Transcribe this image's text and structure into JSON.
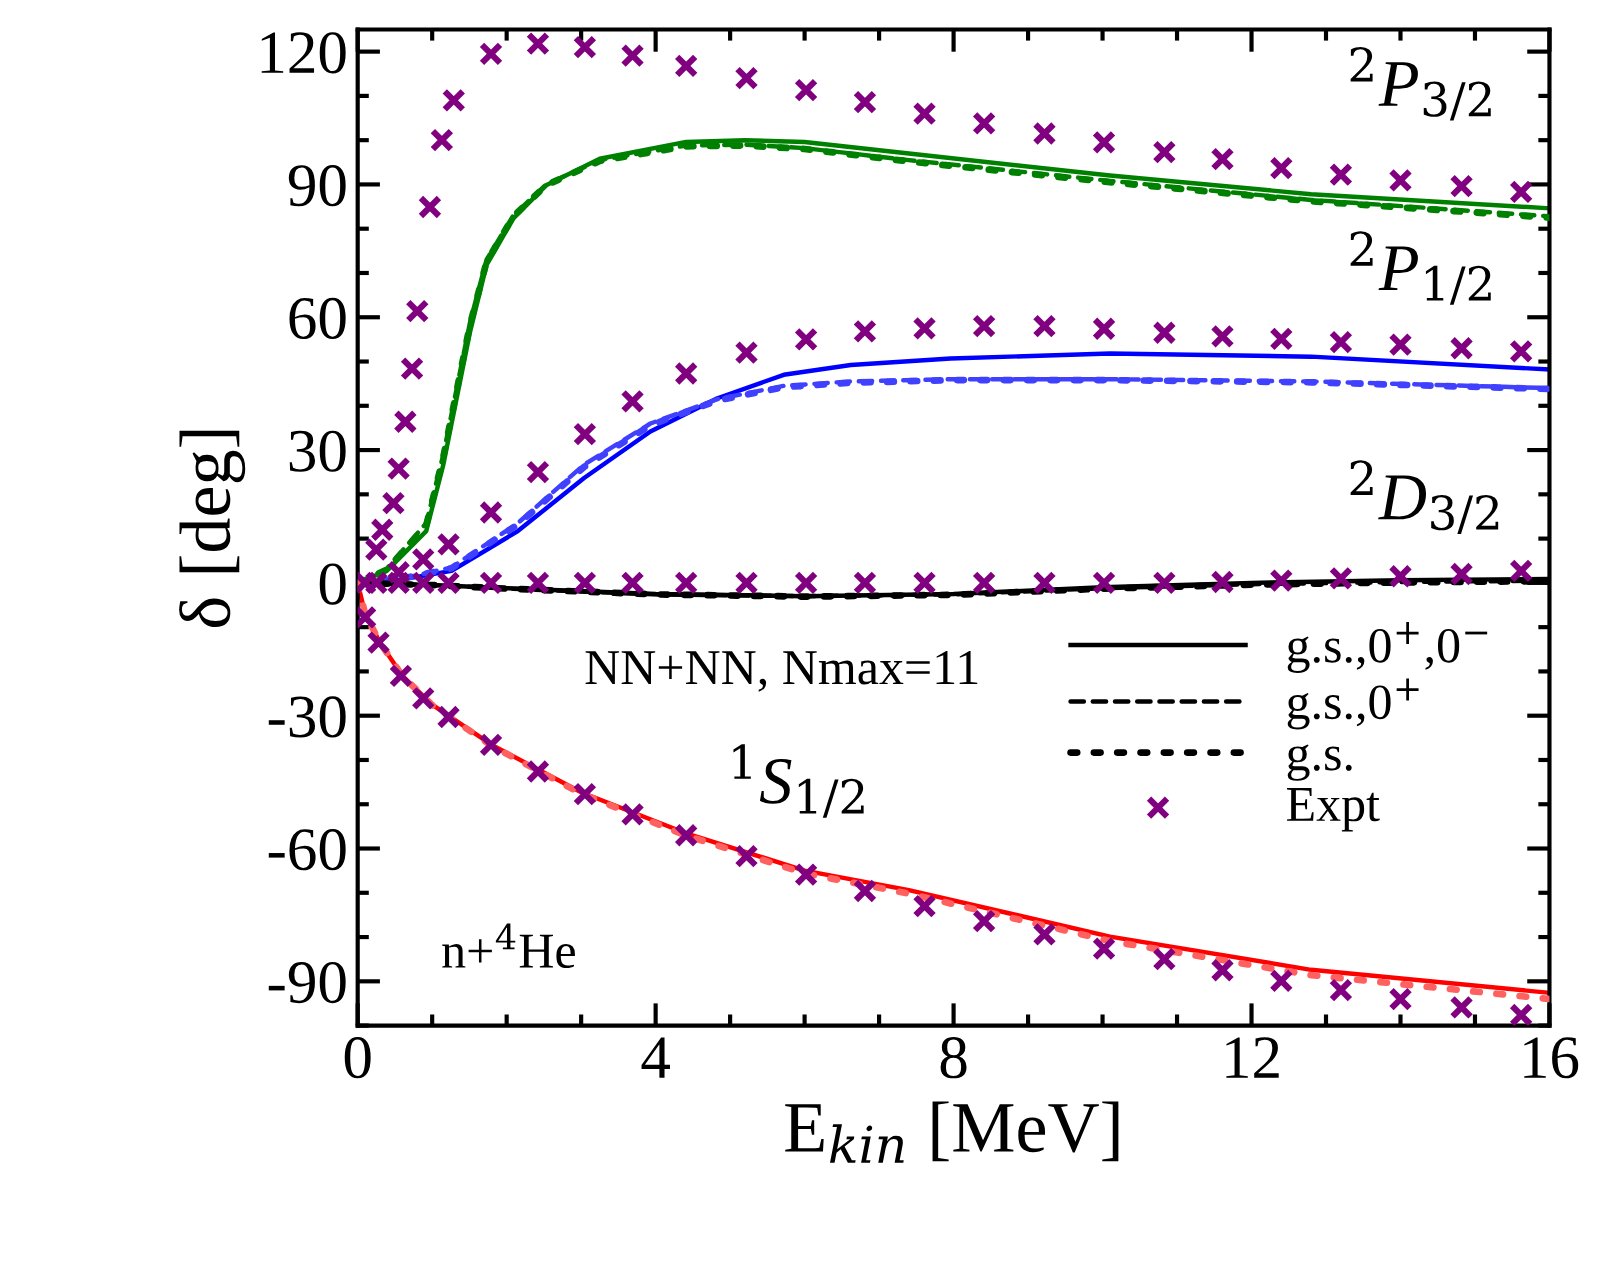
{
  "chart_data": {
    "type": "line",
    "xlabel": "E$_{kin}$ [MeV]",
    "ylabel": "δ [deg]",
    "xlim": [
      0,
      16
    ],
    "ylim": [
      -100,
      125
    ],
    "xticks": [
      0,
      4,
      8,
      12,
      16
    ],
    "yticks": [
      -90,
      -60,
      -30,
      0,
      30,
      60,
      90,
      120
    ],
    "grid": false,
    "legend": "right",
    "annotations": [
      "$^{2}$P$_{3/2}$",
      "$^{2}$P$_{1/2}$",
      "$^{2}$D$_{3/2}$",
      "$^{1}$S$_{1/2}$",
      "NN+NN, Nmax=11",
      "n+$^{4}$He"
    ],
    "series": [
      {
        "color": "#008000",
        "line_style": "solid",
        "x": [
          0,
          0.39,
          0.92,
          1.15,
          1.33,
          1.51,
          1.73,
          2.09,
          2.53,
          3.25,
          4.41,
          5.2,
          6.0,
          7.4,
          10.1,
          12.8,
          16
        ],
        "values": [
          0,
          2.7,
          11.7,
          26.7,
          41.8,
          56.8,
          71.8,
          82.3,
          89.8,
          95.8,
          99.6,
          100,
          99.6,
          97.0,
          92.0,
          87.8,
          84.6
        ]
      },
      {
        "color": "#008000",
        "line_style": "dashed",
        "x": [
          0,
          0.39,
          0.92,
          1.15,
          1.33,
          1.51,
          1.73,
          2.09,
          2.53,
          3.25,
          4.41,
          5.2,
          6.0,
          7.4,
          10.1,
          12.8,
          16
        ],
        "values": [
          0,
          3.2,
          13.5,
          29,
          44,
          59,
          73,
          83,
          90,
          95.5,
          98.8,
          99,
          98.2,
          95.5,
          90.8,
          86.5,
          82.8
        ]
      },
      {
        "color": "#008000",
        "line_style": "dotted",
        "x": [
          0,
          0.39,
          0.92,
          1.15,
          1.33,
          1.51,
          1.73,
          2.09,
          2.53,
          3.25,
          4.41,
          5.2,
          6.0,
          7.4,
          10.1,
          12.8,
          16
        ],
        "values": [
          0,
          3.0,
          13,
          28.5,
          43.5,
          58.5,
          72.5,
          82.8,
          89.8,
          95.3,
          98.6,
          98.8,
          98.0,
          95.2,
          90.5,
          86.2,
          82.5
        ]
      },
      {
        "color": "#0000ff",
        "line_style": "solid",
        "x": [
          0,
          0.6,
          1.26,
          2.15,
          3.04,
          3.93,
          4.83,
          5.72,
          6.62,
          7.96,
          10.1,
          12.8,
          16
        ],
        "values": [
          0,
          0.8,
          2.7,
          11.7,
          23.7,
          34.2,
          41.7,
          47,
          49.2,
          50.7,
          51.8,
          51.1,
          48.2
        ]
      },
      {
        "color": "#4040ff",
        "line_style": "dashed",
        "x": [
          0,
          0.6,
          1.26,
          2.15,
          3.04,
          3.93,
          4.83,
          5.72,
          6.62,
          7.96,
          10.1,
          12.8,
          16
        ],
        "values": [
          0,
          1.0,
          3.5,
          13.5,
          26.7,
          36,
          41.5,
          44.5,
          45.5,
          46.0,
          46.0,
          45.5,
          44.0
        ]
      },
      {
        "color": "#4040ff",
        "line_style": "dotted",
        "x": [
          0,
          0.6,
          1.26,
          2.15,
          3.04,
          3.93,
          4.83,
          5.72,
          6.62,
          7.96,
          10.1,
          12.8,
          16
        ],
        "values": [
          0,
          1.0,
          3.3,
          13.2,
          26.2,
          35.6,
          41.2,
          44.2,
          45.2,
          45.8,
          45.8,
          45.3,
          43.8
        ]
      },
      {
        "name": "g.s.,0$^{+}$,0$^{−}$",
        "color": "#000000",
        "line_style": "solid",
        "x": [
          0,
          1,
          2,
          4,
          6,
          8,
          10,
          12,
          14,
          16
        ],
        "values": [
          0,
          -0.5,
          -1.2,
          -2.5,
          -3,
          -2.5,
          -1,
          0,
          0.6,
          0.9
        ]
      },
      {
        "name": "g.s.,0$^{+}$",
        "color": "#000000",
        "line_style": "dashed",
        "x": [
          0,
          1,
          2,
          4,
          6,
          8,
          10,
          12,
          14,
          16
        ],
        "values": [
          0,
          -0.5,
          -1.3,
          -2.6,
          -3,
          -2.6,
          -1.2,
          -0.3,
          0.2,
          0.5
        ]
      },
      {
        "name": "g.s.",
        "color": "#000000",
        "line_style": "dotted",
        "x": [
          0,
          1,
          2,
          4,
          6,
          8,
          10,
          12,
          14,
          16
        ],
        "values": [
          0,
          -0.5,
          -1.3,
          -2.6,
          -3.1,
          -2.7,
          -1.3,
          -0.4,
          0.1,
          0.4
        ]
      },
      {
        "color": "#ff0000",
        "line_style": "solid",
        "x": [
          0,
          0.1,
          0.3,
          0.6,
          1.0,
          1.8,
          3.0,
          4.4,
          6.0,
          7.4,
          10.1,
          12.8,
          16
        ],
        "values": [
          0,
          -7,
          -13.5,
          -21,
          -27.5,
          -36.6,
          -47.3,
          -56.5,
          -65,
          -69.4,
          -79.9,
          -87.4,
          -92.6
        ]
      },
      {
        "color": "#ff6060",
        "line_style": "dotted",
        "x": [
          0,
          0.1,
          0.3,
          0.6,
          1.0,
          1.8,
          3.0,
          4.4,
          6.0,
          7.4,
          10.1,
          12.8,
          16
        ],
        "values": [
          0,
          -7,
          -13.5,
          -21,
          -27.6,
          -36.8,
          -47.6,
          -57,
          -65.6,
          -70.2,
          -80.9,
          -88.6,
          -94
        ]
      },
      {
        "type": "scatter",
        "name": "Expt",
        "color": "#800080",
        "marker": "cross",
        "x": [
          0.25,
          0.33,
          0.48,
          0.55,
          0.64,
          0.73,
          0.8,
          0.97,
          1.13,
          1.29,
          1.79,
          2.42,
          3.05,
          3.69,
          4.41,
          5.22,
          6.02,
          6.81,
          7.61,
          8.41,
          9.22,
          10.02,
          10.83,
          11.61,
          12.4,
          13.2,
          14.0,
          14.82,
          15.62,
          0.55,
          0.88,
          1.22,
          1.79,
          2.42,
          3.05,
          3.69,
          4.41,
          5.22,
          6.02,
          6.81,
          7.61,
          8.41,
          9.22,
          10.02,
          10.83,
          11.61,
          12.4,
          13.2,
          14.0,
          14.82,
          15.62,
          0.1,
          0.25,
          0.55,
          0.88,
          1.22,
          1.79,
          2.42,
          3.05,
          3.69,
          4.41,
          5.22,
          6.02,
          6.81,
          7.61,
          8.41,
          9.22,
          10.02,
          10.83,
          11.61,
          12.4,
          13.2,
          14.0,
          14.82,
          15.62,
          0.1,
          0.28,
          0.58,
          0.88,
          1.22,
          1.79,
          2.42,
          3.05,
          3.69,
          4.41,
          5.22,
          6.02,
          6.81,
          7.61,
          8.41,
          9.22,
          10.02,
          10.83,
          11.61,
          12.4,
          13.2,
          14.0,
          14.82,
          15.62
        ],
        "values": [
          7.5,
          12.0,
          18.0,
          25.8,
          36.4,
          48.4,
          61.4,
          84.9,
          100,
          109,
          119.5,
          121.8,
          121,
          119.1,
          116.8,
          114,
          111.3,
          108.6,
          106,
          103.8,
          101.5,
          99.5,
          97.3,
          95.7,
          93.7,
          92.2,
          90.9,
          89.6,
          88.3,
          2.4,
          5.3,
          8.7,
          15.9,
          25,
          33.6,
          41,
          47.3,
          52,
          55,
          56.8,
          57.5,
          58,
          58,
          57.4,
          56.5,
          55.7,
          55.1,
          54.4,
          53.8,
          53,
          52.3,
          0,
          0,
          0,
          0,
          0,
          0,
          0,
          0,
          0,
          0,
          0,
          0,
          0,
          0,
          0,
          0,
          0,
          0,
          0.2,
          0.5,
          1,
          1.5,
          2,
          2.7,
          -7.8,
          -13.5,
          -21,
          -26.1,
          -30.3,
          -36.6,
          -42.6,
          -47.7,
          -52.3,
          -57,
          -61.7,
          -65.9,
          -69.6,
          -73,
          -76.4,
          -79.4,
          -82.6,
          -85,
          -87.5,
          -89.9,
          -92,
          -94,
          -95.9,
          -97.6
        ]
      }
    ]
  }
}
